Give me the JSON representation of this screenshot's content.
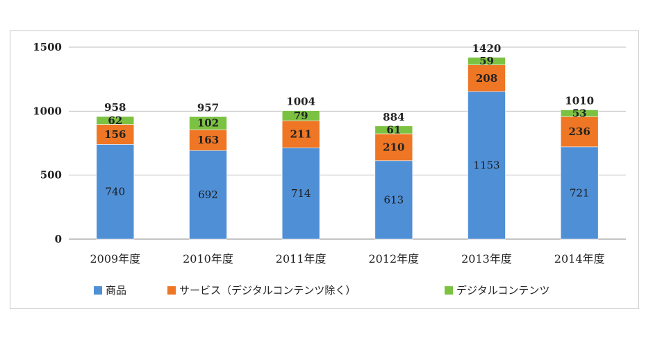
{
  "chart_data": {
    "type": "bar",
    "stacked": true,
    "categories": [
      "2009年度",
      "2010年度",
      "2011年度",
      "2012年度",
      "2013年度",
      "2014年度"
    ],
    "series": [
      {
        "name": "商品",
        "color": "#4f8fd6",
        "values": [
          740,
          692,
          714,
          613,
          1153,
          721
        ]
      },
      {
        "name": "サービス（デジタルコンテンツ除く）",
        "color": "#ee7624",
        "values": [
          156,
          163,
          211,
          210,
          208,
          236
        ]
      },
      {
        "name": "デジタルコンテンツ",
        "color": "#7cc242",
        "values": [
          62,
          102,
          79,
          61,
          59,
          53
        ]
      }
    ],
    "totals": [
      958,
      957,
      1004,
      884,
      1420,
      1010
    ],
    "ylim": [
      0,
      1500
    ],
    "yticks": [
      0,
      500,
      1000,
      1500
    ],
    "grid": true,
    "legend_position": "bottom"
  }
}
